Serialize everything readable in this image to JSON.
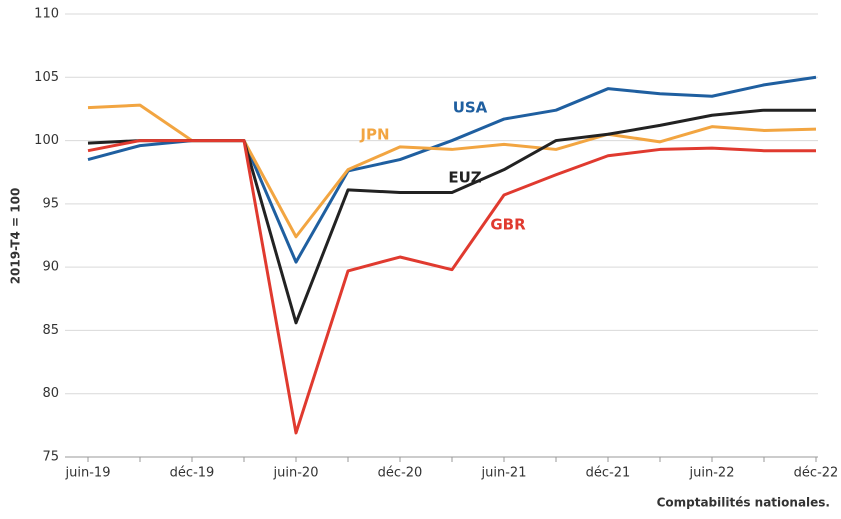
{
  "chart_data": {
    "type": "line",
    "y_label": "2019-T4 = 100",
    "source": "Comptabilités nationales.",
    "categories": [
      "juin-19",
      null,
      "déc-19",
      null,
      "juin-20",
      null,
      "déc-20",
      null,
      "juin-21",
      null,
      "déc-21",
      null,
      "juin-22",
      null,
      "déc-22"
    ],
    "series": [
      {
        "name": "USA",
        "color": "#1f5fa0",
        "values": [
          98.5,
          99.6,
          100,
          100,
          90.4,
          97.6,
          98.5,
          100,
          101.7,
          102.4,
          104.1,
          103.7,
          103.5,
          104.4,
          105.0
        ]
      },
      {
        "name": "JPN",
        "color": "#f2a541",
        "values": [
          102.6,
          102.8,
          100,
          100,
          92.4,
          97.7,
          99.5,
          99.3,
          99.7,
          99.3,
          100.5,
          99.9,
          101.1,
          100.8,
          100.9
        ]
      },
      {
        "name": "EUZ",
        "color": "#222222",
        "values": [
          99.8,
          100,
          100,
          100,
          85.6,
          96.1,
          95.9,
          95.9,
          97.7,
          100,
          100.5,
          101.2,
          102.0,
          102.4,
          102.4
        ]
      },
      {
        "name": "GBR",
        "color": "#e03a2f",
        "values": [
          99.2,
          100,
          100,
          100,
          76.9,
          89.7,
          90.8,
          89.8,
          95.7,
          97.3,
          98.8,
          99.3,
          99.4,
          99.2,
          99.2
        ]
      }
    ],
    "ylim": [
      75,
      110
    ],
    "yticks": [
      75,
      80,
      85,
      90,
      95,
      100,
      105,
      110
    ],
    "grid": true
  }
}
